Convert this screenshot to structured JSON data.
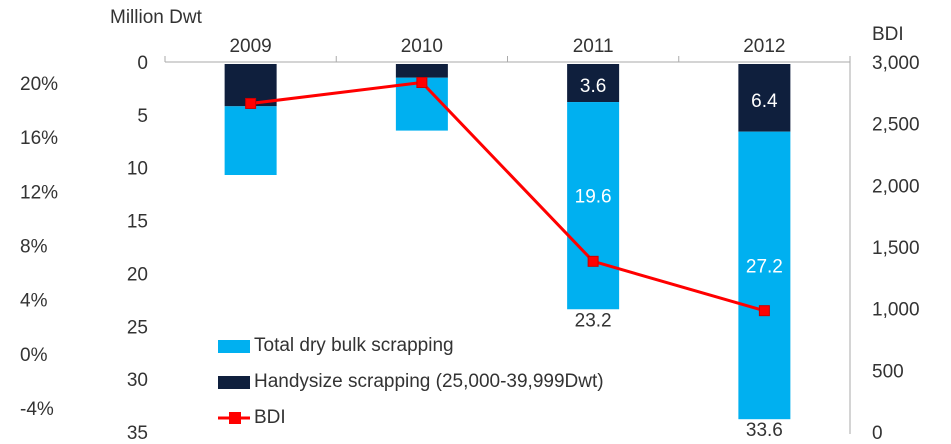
{
  "chart_data": {
    "type": "bar",
    "y_label": "Million Dwt",
    "y2_label": "BDI",
    "categories": [
      "2009",
      "2010",
      "2011",
      "2012"
    ],
    "stack_order": [
      1,
      0
    ],
    "series": [
      {
        "name": "Total dry bulk scrapping",
        "color": "#00b0f0",
        "values": [
          6.5,
          5.0,
          19.6,
          27.2
        ],
        "value_labels": [
          null,
          null,
          "19.6",
          "27.2"
        ]
      },
      {
        "name": "Handysize scrapping (25,000-39,999Dwt)",
        "color": "#0f1f3d",
        "values": [
          4.0,
          1.3,
          3.6,
          6.4
        ],
        "value_labels": [
          null,
          null,
          "3.6",
          "6.4"
        ]
      },
      {
        "name": "BDI",
        "type": "line",
        "axis": "y2",
        "color": "#ff0000",
        "values": [
          2680,
          2850,
          1400,
          1000
        ]
      }
    ],
    "totals": {
      "categories": [
        "2011",
        "2012"
      ],
      "values": [
        23.2,
        33.6
      ]
    },
    "ylim": [
      0,
      35
    ],
    "yticks": [
      0,
      5,
      10,
      15,
      20,
      25,
      30,
      35
    ],
    "y_inverted": true,
    "y2lim": [
      0,
      3000
    ],
    "y2ticks": [
      {
        "value": 3000,
        "label": "3,000"
      },
      {
        "value": 2500,
        "label": "2,500"
      },
      {
        "value": 2000,
        "label": "2,000"
      },
      {
        "value": 1500,
        "label": "1,500"
      },
      {
        "value": 1000,
        "label": "1,000"
      },
      500,
      0
    ],
    "y3lim": [
      -4,
      20
    ],
    "y3ticks": [
      {
        "value": 20,
        "label": "20%"
      },
      {
        "value": 16,
        "label": "16%"
      },
      {
        "value": 12,
        "label": "12%"
      },
      {
        "value": 8,
        "label": "8%"
      },
      {
        "value": 4,
        "label": "4%"
      },
      {
        "value": 0,
        "label": "0%"
      },
      {
        "value": -4,
        "label": "-4%"
      }
    ]
  }
}
